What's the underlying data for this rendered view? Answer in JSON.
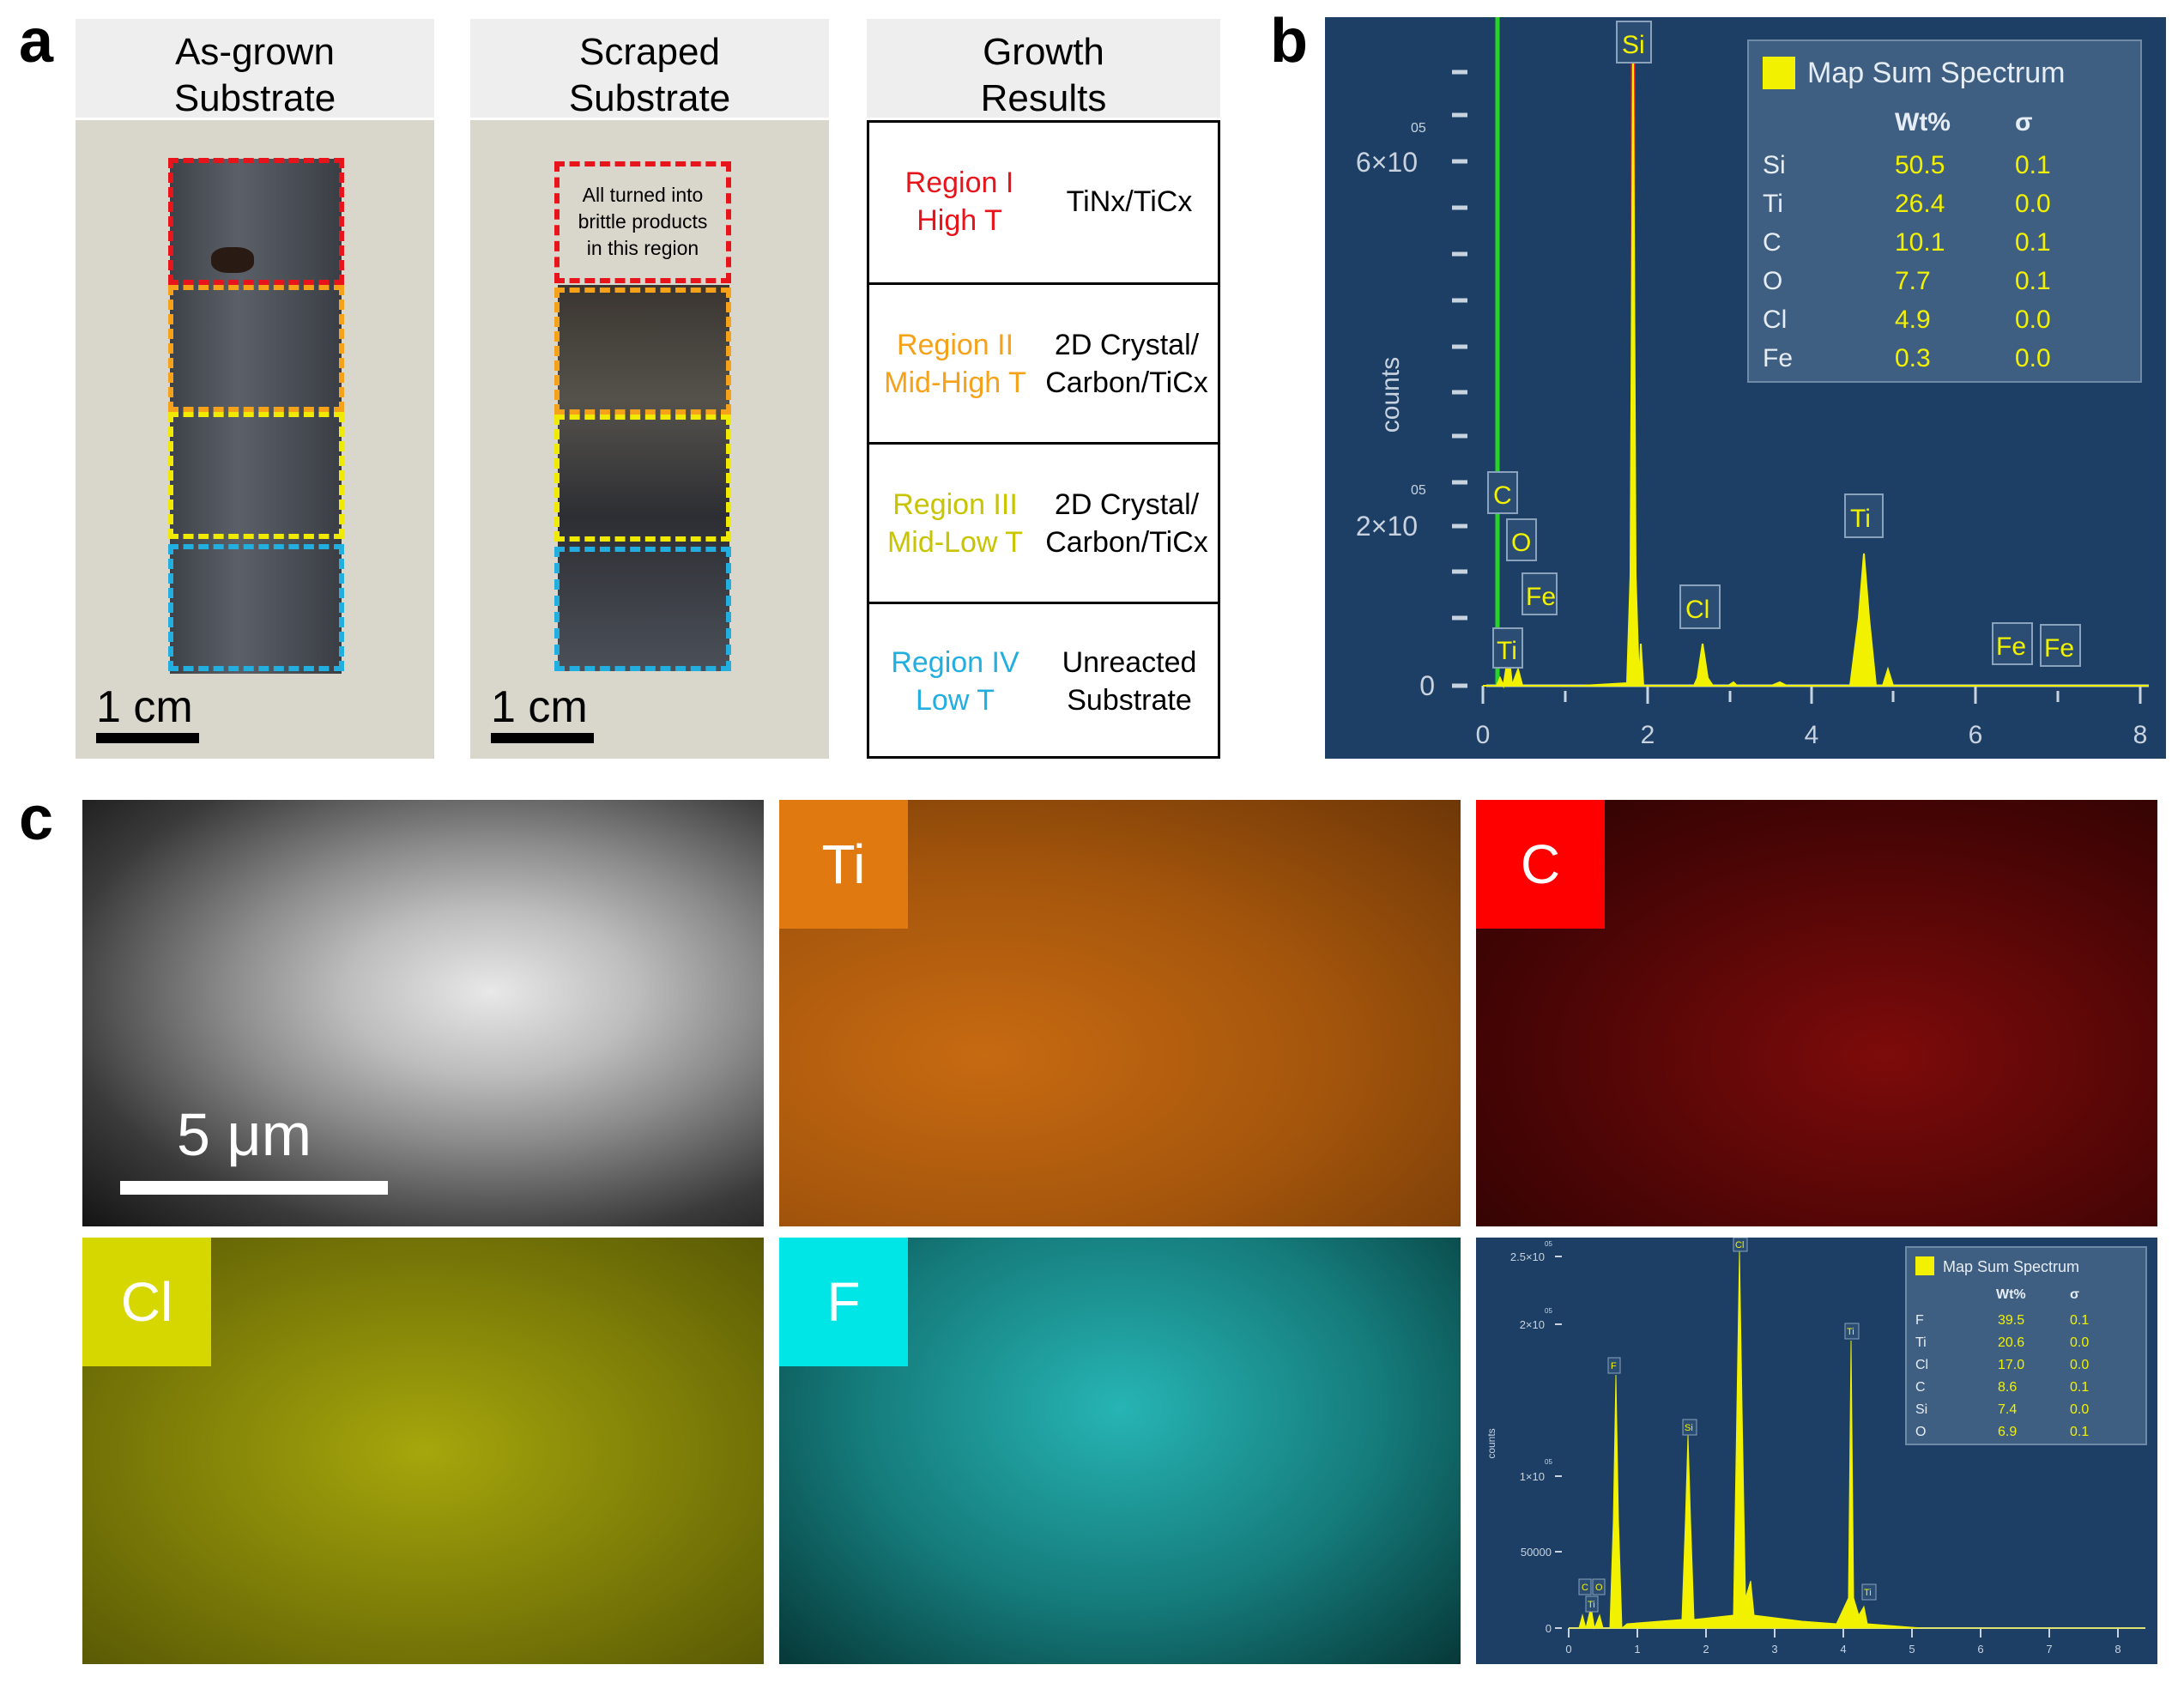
{
  "panel_letters": {
    "a": "a",
    "b": "b",
    "c": "c"
  },
  "panel_a": {
    "col1_header_line1": "As-grown",
    "col1_header_line2": "Substrate",
    "col2_header_line1": "Scraped",
    "col2_header_line2": "Substrate",
    "col3_header_line1": "Growth",
    "col3_header_line2": "Results",
    "scrape_note_line1": "All turned into",
    "scrape_note_line2": "brittle products",
    "scrape_note_line3": "in this region",
    "scale_bar_label": "1 cm",
    "region_colors": {
      "I": "#e8141b",
      "II": "#f5a21a",
      "III": "#e8e000",
      "IV": "#23aee0"
    },
    "table_rows": [
      {
        "region_line1": "Region I",
        "region_line2": "High T",
        "result_line1": "TiNx/TiCx",
        "result_line2": "",
        "color": "#e8141b"
      },
      {
        "region_line1": "Region II",
        "region_line2": "Mid-High T",
        "result_line1": "2D Crystal/",
        "result_line2": "Carbon/TiCx",
        "color": "#f5a21a"
      },
      {
        "region_line1": "Region III",
        "region_line2": "Mid-Low T",
        "result_line1": "2D Crystal/",
        "result_line2": "Carbon/TiCx",
        "color": "#c9c400"
      },
      {
        "region_line1": "Region IV",
        "region_line2": "Low T",
        "result_line1": "Unreacted",
        "result_line2": "Substrate",
        "color": "#23aee0"
      }
    ]
  },
  "panel_b": {
    "ylabel": "counts",
    "y_tick_labels": [
      "0",
      "2×10",
      "6×10"
    ],
    "y_tick_exponent": "05",
    "x_tick_labels": [
      "0",
      "2",
      "4",
      "6",
      "8"
    ],
    "legend_title": "Map Sum Spectrum",
    "legend_header_wt": "Wt%",
    "legend_header_sigma": "σ",
    "legend_rows": [
      {
        "el": "Si",
        "wt": "50.5",
        "sigma": "0.1"
      },
      {
        "el": "Ti",
        "wt": "26.4",
        "sigma": "0.0"
      },
      {
        "el": "C",
        "wt": "10.1",
        "sigma": "0.1"
      },
      {
        "el": "O",
        "wt": "7.7",
        "sigma": "0.1"
      },
      {
        "el": "Cl",
        "wt": "4.9",
        "sigma": "0.0"
      },
      {
        "el": "Fe",
        "wt": "0.3",
        "sigma": "0.0"
      }
    ],
    "peak_labels": [
      "Si",
      "C",
      "O",
      "Fe",
      "Ti",
      "Cl",
      "Ti",
      "Fe",
      "Fe"
    ]
  },
  "panel_c": {
    "scale_bar_label": "5 μm",
    "map_labels": {
      "Ti": "Ti",
      "C": "C",
      "Cl": "Cl",
      "F": "F"
    },
    "map_colors": {
      "Ti": "#e07a10",
      "C": "#ff0000",
      "Cl": "#d7d700",
      "F": "#00e5e5"
    },
    "spectrum": {
      "ylabel": "counts",
      "y_tick_labels": [
        "0",
        "50000",
        "1×10",
        "2×10",
        "2.5×10"
      ],
      "y_tick_exponent": "05",
      "x_tick_labels": [
        "0",
        "1",
        "2",
        "3",
        "4",
        "5",
        "6",
        "7",
        "8"
      ],
      "legend_title": "Map Sum Spectrum",
      "legend_header_wt": "Wt%",
      "legend_header_sigma": "σ",
      "legend_rows": [
        {
          "el": "F",
          "wt": "39.5",
          "sigma": "0.1"
        },
        {
          "el": "Ti",
          "wt": "20.6",
          "sigma": "0.0"
        },
        {
          "el": "Cl",
          "wt": "17.0",
          "sigma": "0.0"
        },
        {
          "el": "C",
          "wt": "8.6",
          "sigma": "0.1"
        },
        {
          "el": "Si",
          "wt": "7.4",
          "sigma": "0.0"
        },
        {
          "el": "O",
          "wt": "6.9",
          "sigma": "0.1"
        }
      ],
      "peak_labels": [
        "F",
        "Si",
        "Cl",
        "Ti",
        "C",
        "O",
        "Ti",
        "Ti"
      ]
    }
  }
}
